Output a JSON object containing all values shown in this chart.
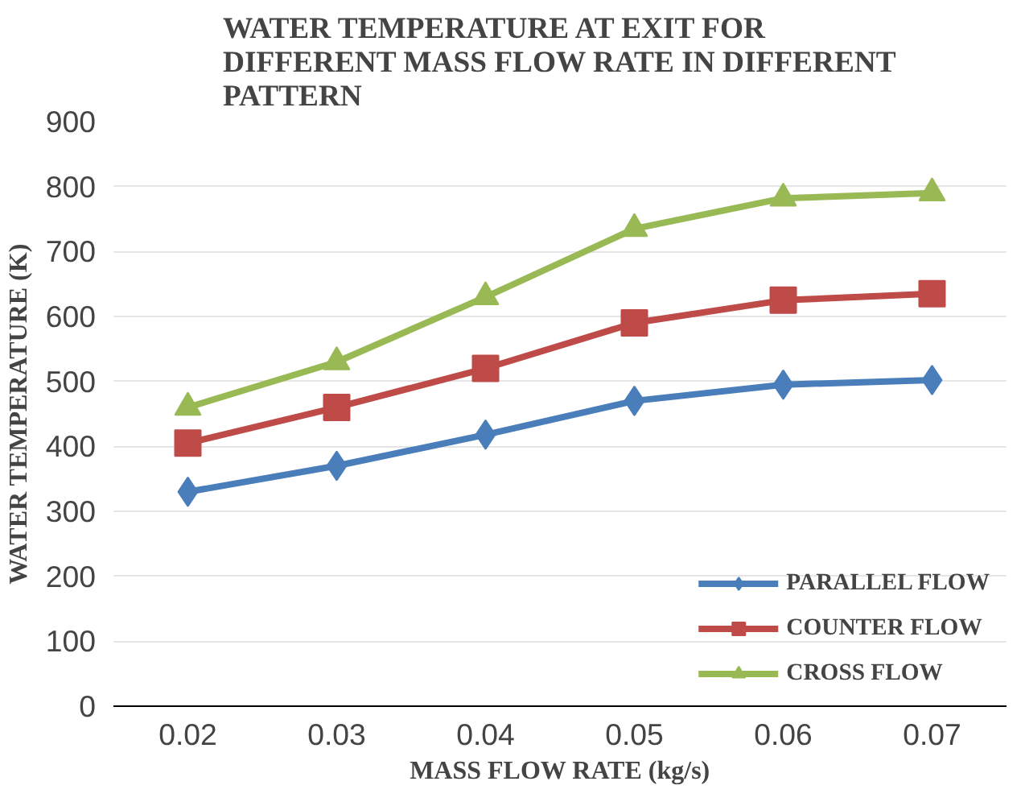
{
  "chart_data": {
    "type": "line",
    "title": "WATER TEMPERATURE AT EXIT FOR\nDIFFERENT MASS FLOW RATE IN DIFFERENT\nPATTERN",
    "xlabel": "MASS FLOW RATE (kg/s)",
    "ylabel": "WATER TEMPERATURE (K)",
    "categories": [
      "0.02",
      "0.03",
      "0.04",
      "0.05",
      "0.06",
      "0.07"
    ],
    "series": [
      {
        "name": "PARALLEL FLOW",
        "color": "#4a7ebb",
        "marker": "diamond",
        "values": [
          330,
          370,
          418,
          470,
          495,
          502
        ]
      },
      {
        "name": "COUNTER FLOW",
        "color": "#be4b48",
        "marker": "square",
        "values": [
          405,
          460,
          520,
          590,
          625,
          635
        ]
      },
      {
        "name": "CROSS FLOW",
        "color": "#98b954",
        "marker": "triangle",
        "values": [
          460,
          530,
          630,
          735,
          782,
          790
        ]
      }
    ],
    "ylim": [
      0,
      900
    ],
    "yticks": [
      0,
      100,
      200,
      300,
      400,
      500,
      600,
      700,
      800,
      900
    ],
    "grid": "y",
    "legend": "bottom right",
    "line_style": "solid"
  }
}
